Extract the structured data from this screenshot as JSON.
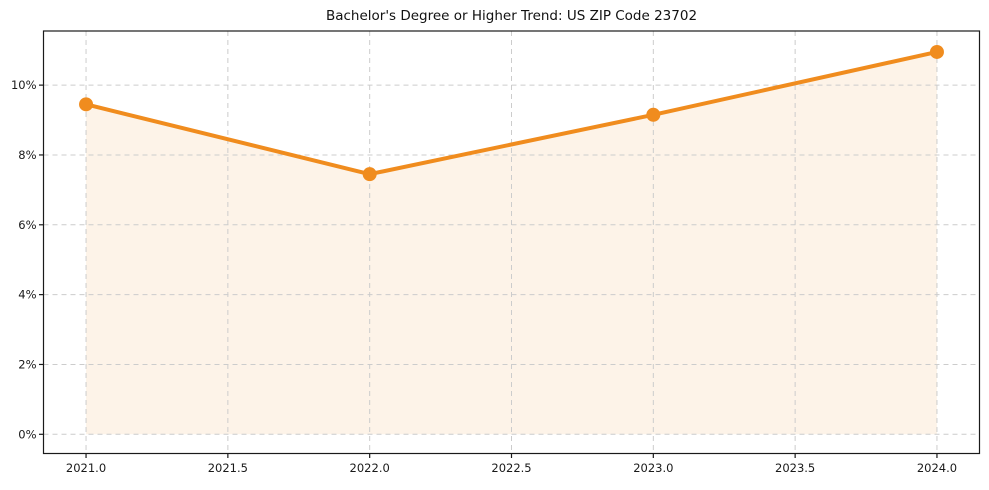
{
  "chart_data": {
    "type": "line",
    "title": "Bachelor's Degree or Higher Trend: US ZIP Code 23702",
    "x": [
      2021,
      2022,
      2023,
      2024
    ],
    "y": [
      9.45,
      7.45,
      9.15,
      10.95
    ],
    "xlabel": "",
    "ylabel": "",
    "xlim": [
      2020.85,
      2024.15
    ],
    "ylim": [
      -0.55,
      11.55
    ],
    "xticks": [
      2021.0,
      2021.5,
      2022.0,
      2022.5,
      2023.0,
      2023.5,
      2024.0
    ],
    "xtick_labels": [
      "2021.0",
      "2021.5",
      "2022.0",
      "2022.5",
      "2023.0",
      "2023.5",
      "2024.0"
    ],
    "yticks": [
      0,
      2,
      4,
      6,
      8,
      10
    ],
    "ytick_labels": [
      "0%",
      "2%",
      "4%",
      "6%",
      "8%",
      "10%"
    ],
    "grid": true,
    "grid_style": "dashed",
    "legend_position": "none",
    "area_fill": true,
    "fill_baseline": 0,
    "markers": true,
    "line_color": "#f08c1e",
    "fill_color": "rgba(240,140,30,0.10)",
    "grid_color": "#cccccc",
    "spine_color": "#1a1a1a",
    "tick_label_color": "#1a1a1a",
    "title_color": "#111111",
    "background": "#ffffff"
  }
}
